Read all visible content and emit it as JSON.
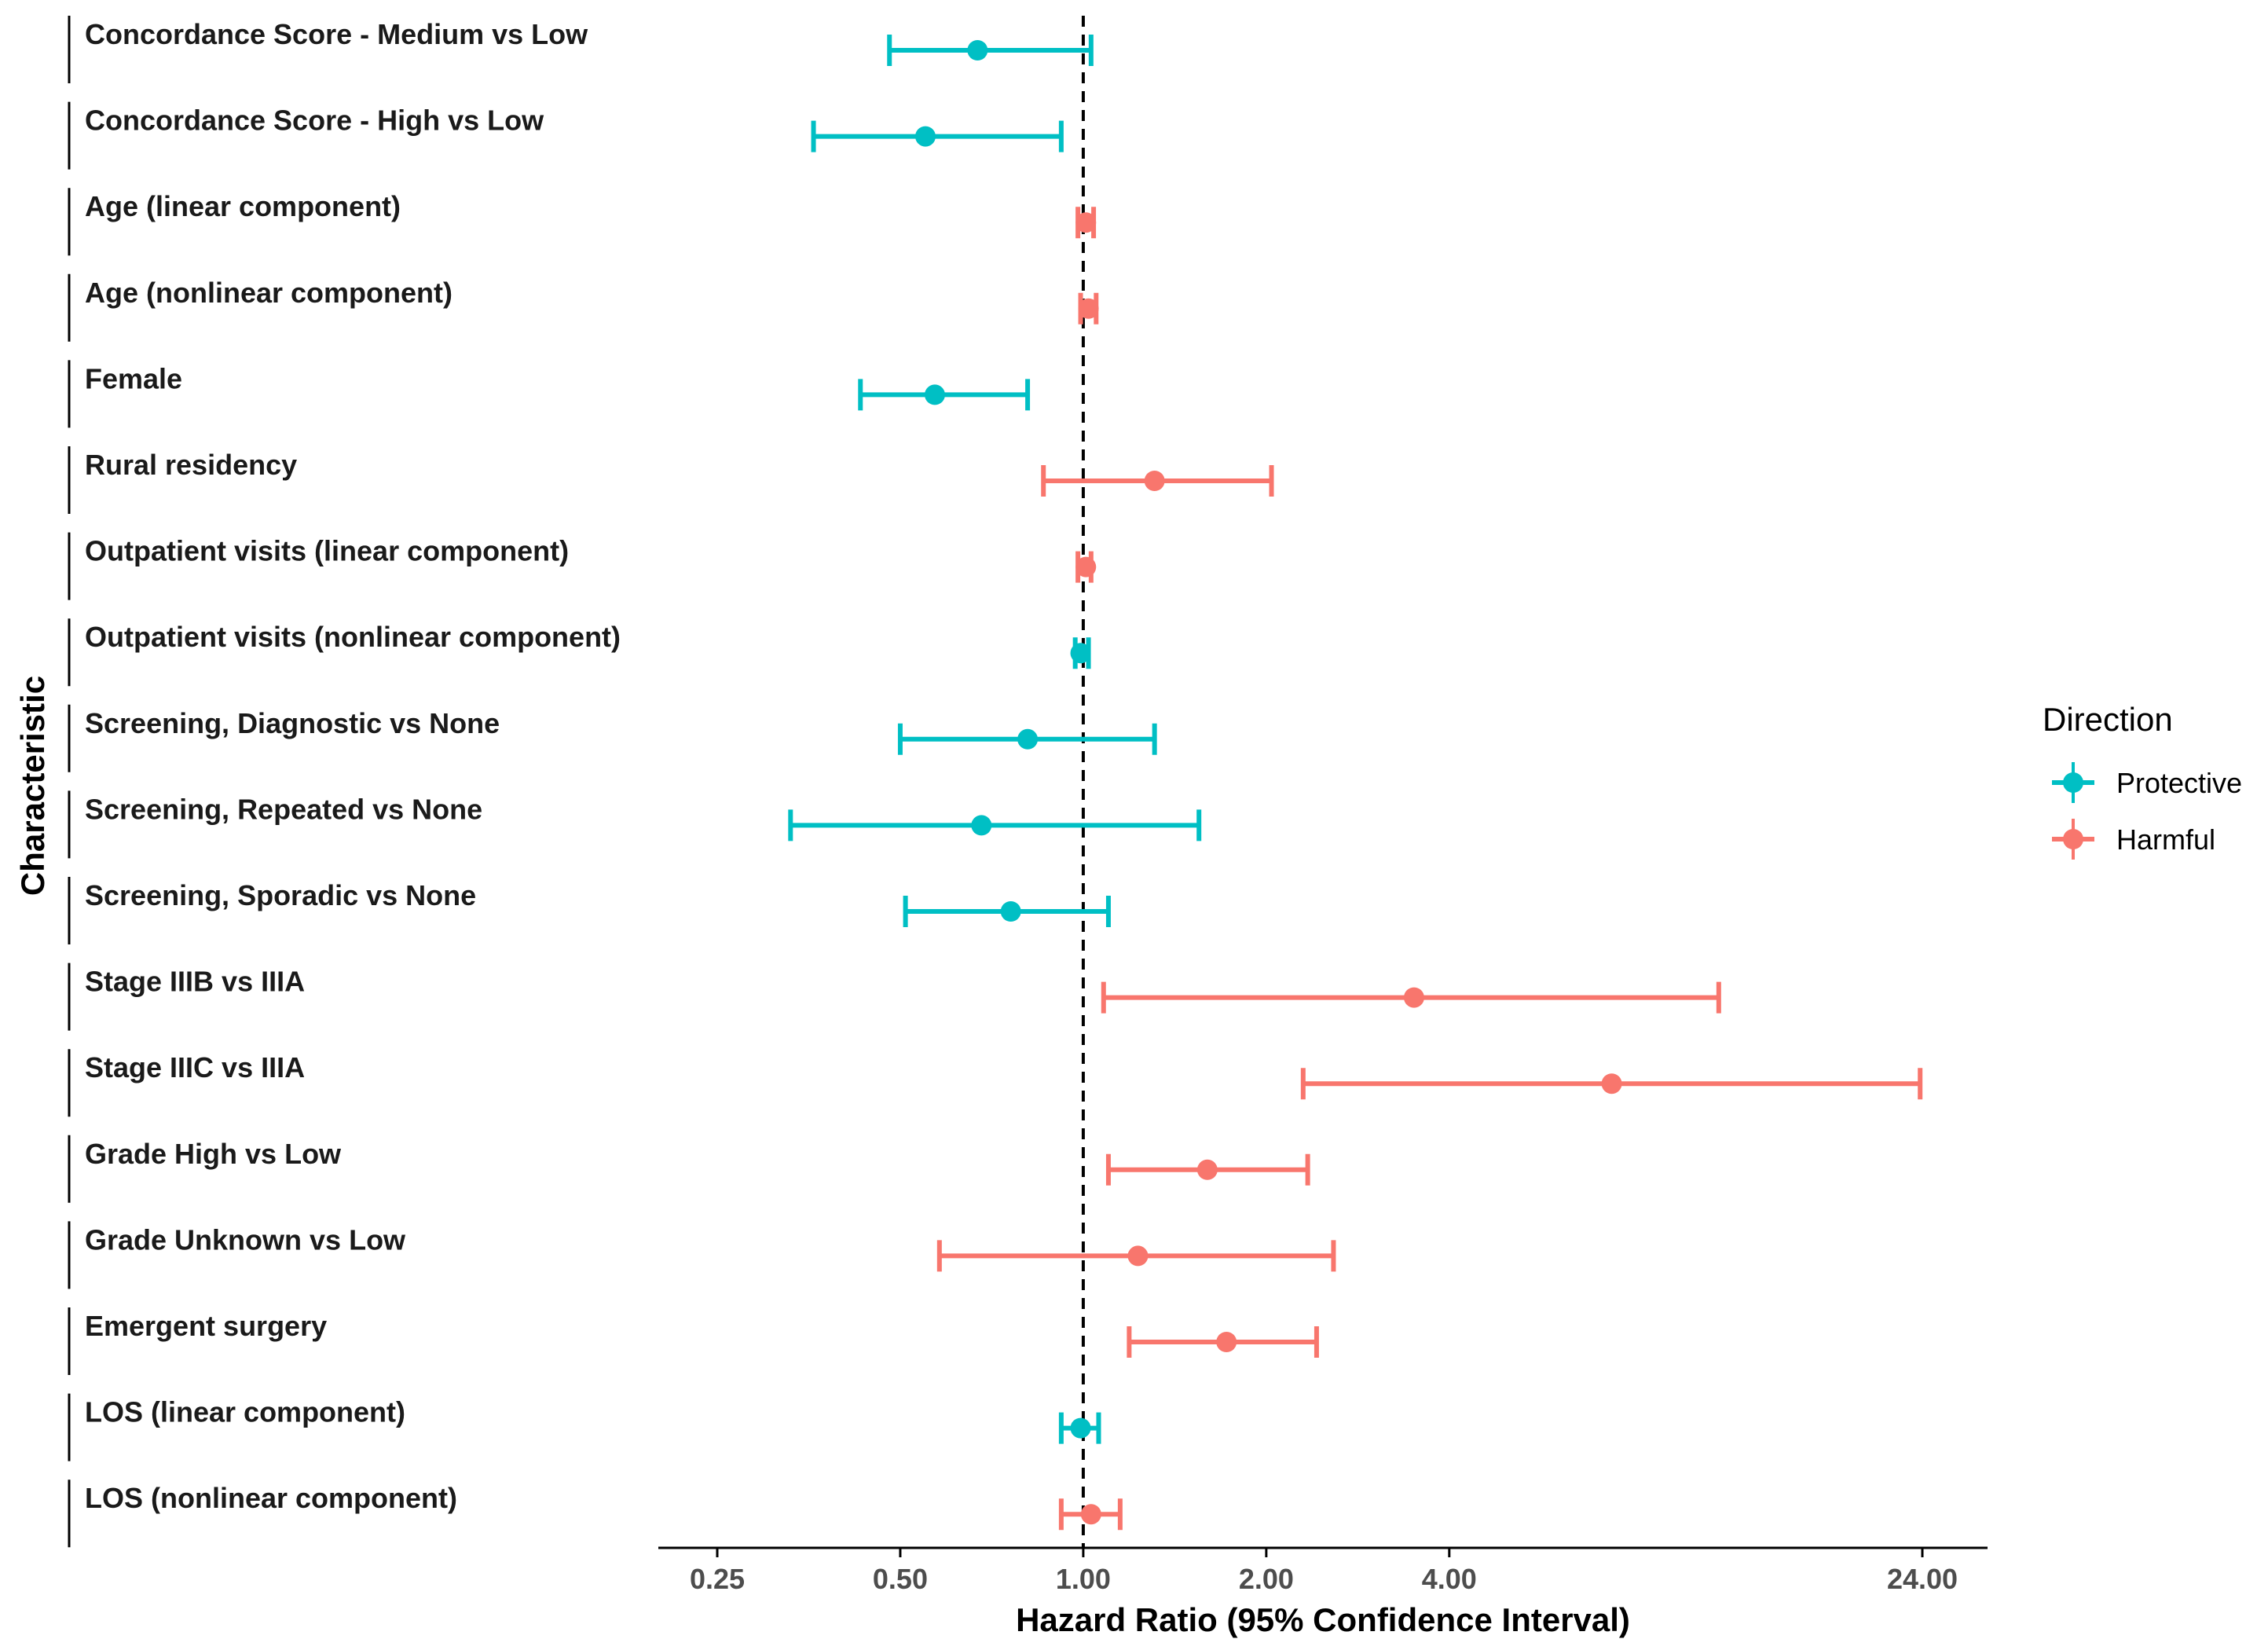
{
  "chart_data": {
    "type": "forest",
    "xlabel": "Hazard Ratio (95% Confidence Interval)",
    "ylabel": "Characteristic",
    "x_scale": "log",
    "xlim": [
      0.2,
      35
    ],
    "x_ticks": [
      0.25,
      0.5,
      1,
      2,
      4,
      24
    ],
    "x_tick_labels": [
      "0.25",
      "0.50",
      "1.00",
      "2.00",
      "4.00",
      "24.00"
    ],
    "reference_line": 1,
    "legend": {
      "title": "Direction",
      "placement": "right",
      "entries": [
        {
          "label": "Protective",
          "color": "#00BFC4"
        },
        {
          "label": "Harmful",
          "color": "#F8766D"
        }
      ]
    },
    "rows": [
      {
        "label": "Concordance Score - Medium vs Low",
        "hr": 0.67,
        "lower": 0.48,
        "upper": 1.03,
        "direction": "Protective"
      },
      {
        "label": "Concordance Score - High vs Low",
        "hr": 0.55,
        "lower": 0.36,
        "upper": 0.92,
        "direction": "Protective"
      },
      {
        "label": "Age (linear component)",
        "hr": 1.01,
        "lower": 0.98,
        "upper": 1.04,
        "direction": "Harmful"
      },
      {
        "label": "Age (nonlinear component)",
        "hr": 1.02,
        "lower": 0.99,
        "upper": 1.05,
        "direction": "Harmful"
      },
      {
        "label": "Female",
        "hr": 0.57,
        "lower": 0.43,
        "upper": 0.81,
        "direction": "Protective"
      },
      {
        "label": "Rural residency",
        "hr": 1.31,
        "lower": 0.86,
        "upper": 2.04,
        "direction": "Harmful"
      },
      {
        "label": "Outpatient visits (linear component)",
        "hr": 1.01,
        "lower": 0.98,
        "upper": 1.03,
        "direction": "Harmful"
      },
      {
        "label": "Outpatient visits (nonlinear component)",
        "hr": 0.99,
        "lower": 0.97,
        "upper": 1.02,
        "direction": "Protective"
      },
      {
        "label": "Screening, Diagnostic vs None",
        "hr": 0.81,
        "lower": 0.5,
        "upper": 1.31,
        "direction": "Protective"
      },
      {
        "label": "Screening, Repeated vs None",
        "hr": 0.68,
        "lower": 0.33,
        "upper": 1.55,
        "direction": "Protective"
      },
      {
        "label": "Screening, Sporadic vs None",
        "hr": 0.76,
        "lower": 0.51,
        "upper": 1.1,
        "direction": "Protective"
      },
      {
        "label": "Stage IIIB vs IIIA",
        "hr": 3.5,
        "lower": 1.08,
        "upper": 11.1,
        "direction": "Harmful"
      },
      {
        "label": "Stage IIIC vs IIIA",
        "hr": 7.4,
        "lower": 2.3,
        "upper": 23.8,
        "direction": "Harmful"
      },
      {
        "label": "Grade High vs Low",
        "hr": 1.6,
        "lower": 1.1,
        "upper": 2.34,
        "direction": "Harmful"
      },
      {
        "label": "Grade Unknown vs Low",
        "hr": 1.23,
        "lower": 0.58,
        "upper": 2.58,
        "direction": "Harmful"
      },
      {
        "label": "Emergent surgery",
        "hr": 1.72,
        "lower": 1.19,
        "upper": 2.42,
        "direction": "Harmful"
      },
      {
        "label": "LOS (linear component)",
        "hr": 0.99,
        "lower": 0.92,
        "upper": 1.06,
        "direction": "Protective"
      },
      {
        "label": "LOS (nonlinear component)",
        "hr": 1.03,
        "lower": 0.92,
        "upper": 1.15,
        "direction": "Harmful"
      }
    ]
  }
}
